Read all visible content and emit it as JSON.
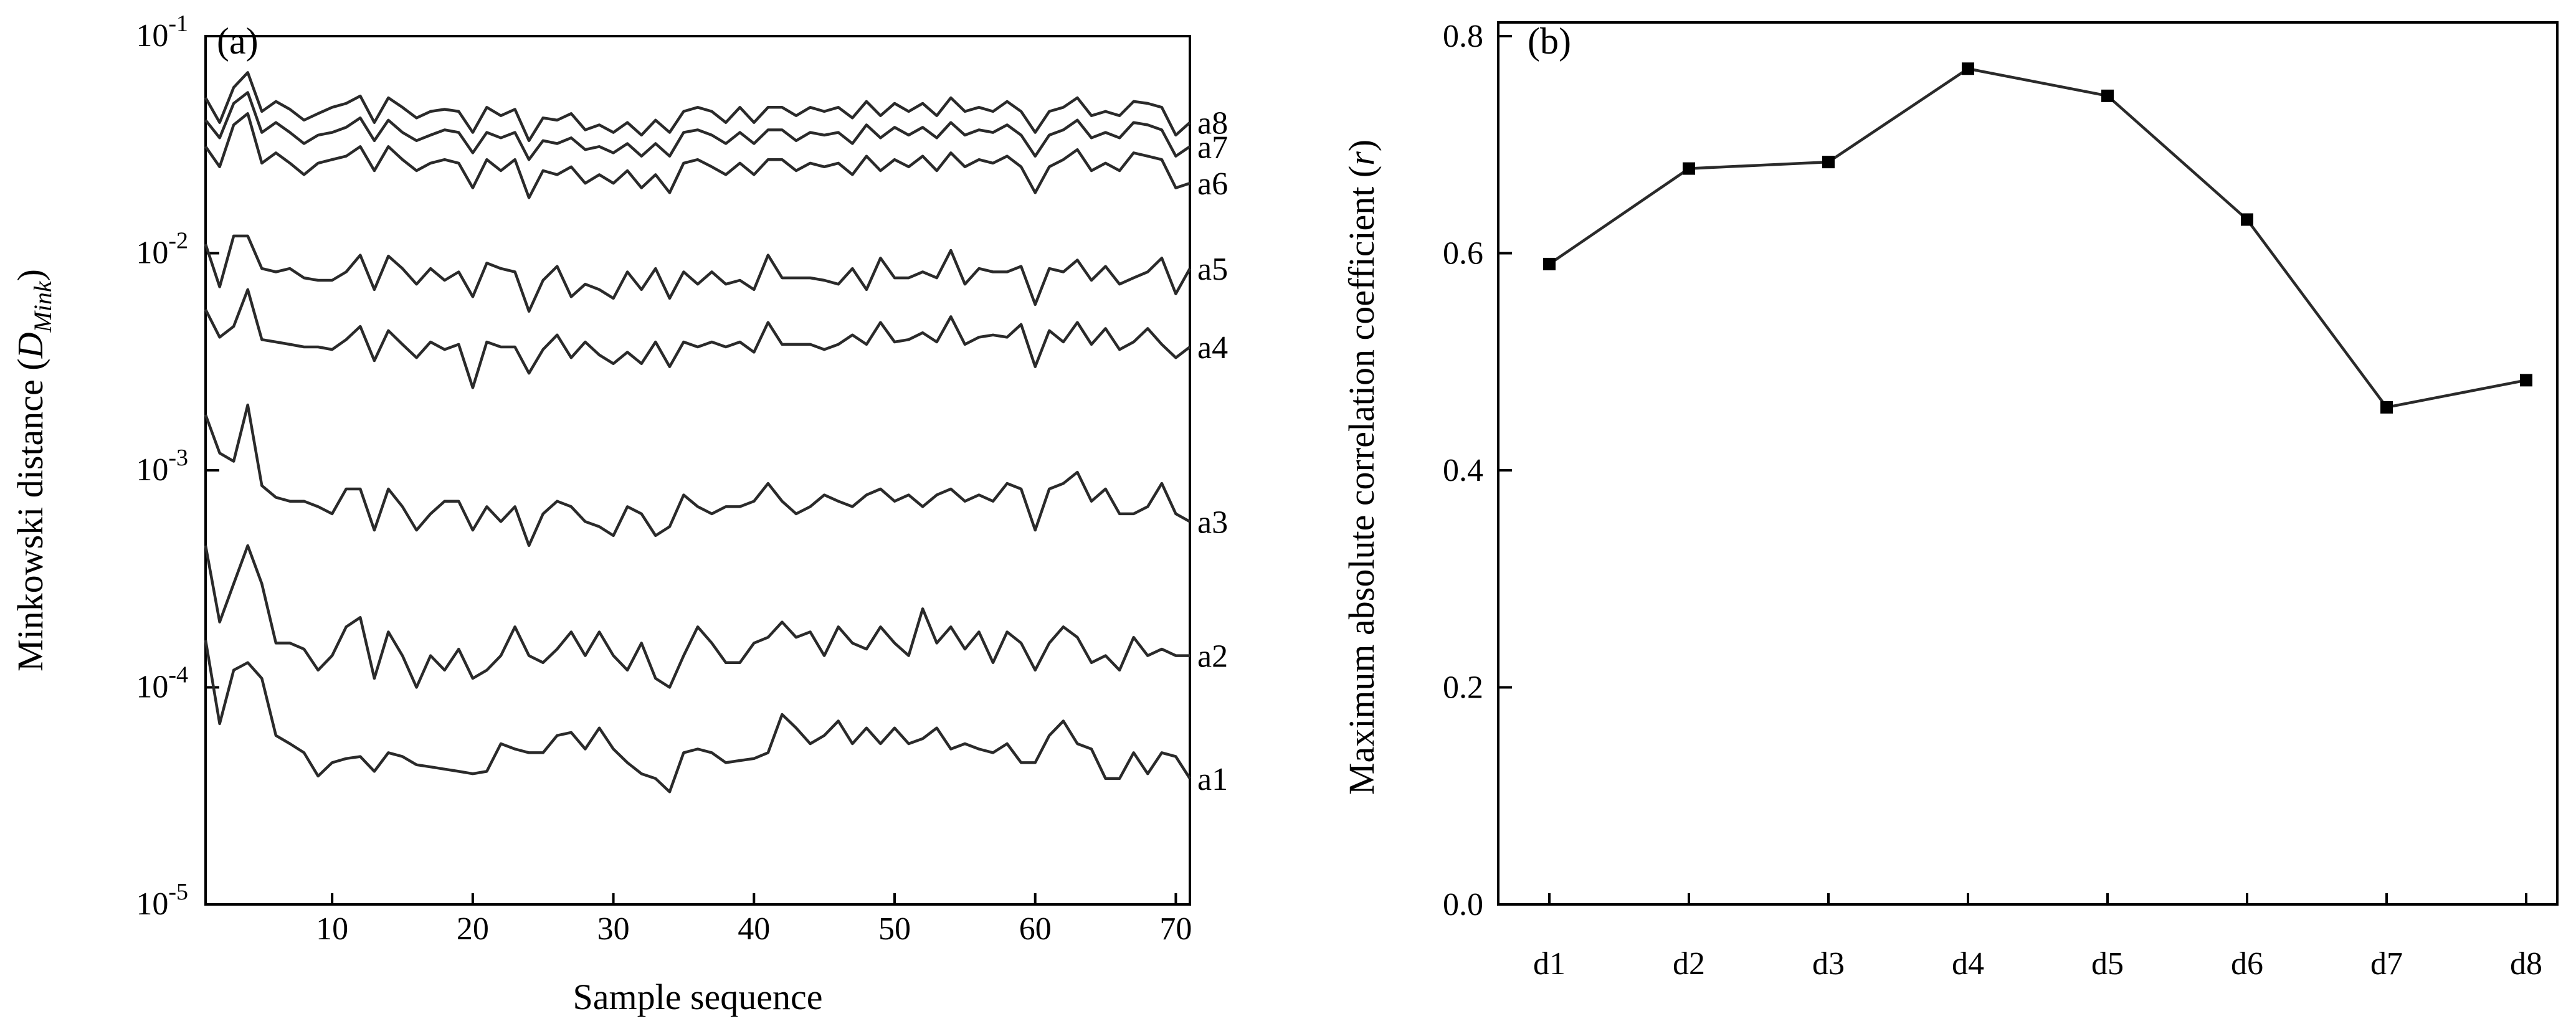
{
  "chart_data": [
    {
      "type": "line",
      "panel_label": "(a)",
      "xlabel": "Sample sequence",
      "ylabel_main": "Minkowski distance (",
      "ylabel_symbol": "D",
      "ylabel_sub": "Mink",
      "ylabel_close": ")",
      "yscale": "log",
      "xlim": [
        1,
        71
      ],
      "ylim": [
        1e-05,
        0.1
      ],
      "x_ticks": [
        "10",
        "20",
        "30",
        "40",
        "50",
        "60",
        "70"
      ],
      "y_ticks": [
        {
          "base": "10",
          "exp": "-5"
        },
        {
          "base": "10",
          "exp": "-4"
        },
        {
          "base": "10",
          "exp": "-3"
        },
        {
          "base": "10",
          "exp": "-2"
        },
        {
          "base": "10",
          "exp": "-1"
        }
      ],
      "x": [
        1,
        2,
        3,
        4,
        5,
        6,
        7,
        8,
        9,
        10,
        11,
        12,
        13,
        14,
        15,
        16,
        17,
        18,
        19,
        20,
        21,
        22,
        23,
        24,
        25,
        26,
        27,
        28,
        29,
        30,
        31,
        32,
        33,
        34,
        35,
        36,
        37,
        38,
        39,
        40,
        41,
        42,
        43,
        44,
        45,
        46,
        47,
        48,
        49,
        50,
        51,
        52,
        53,
        54,
        55,
        56,
        57,
        58,
        59,
        60,
        61,
        62,
        63,
        64,
        65,
        66,
        67,
        68,
        69,
        70,
        71
      ],
      "series": [
        {
          "name": "a8",
          "values": [
            0.052,
            0.04,
            0.058,
            0.068,
            0.045,
            0.05,
            0.046,
            0.041,
            0.044,
            0.047,
            0.049,
            0.053,
            0.04,
            0.052,
            0.047,
            0.042,
            0.045,
            0.046,
            0.045,
            0.036,
            0.047,
            0.043,
            0.046,
            0.033,
            0.042,
            0.041,
            0.044,
            0.037,
            0.039,
            0.036,
            0.04,
            0.035,
            0.041,
            0.036,
            0.045,
            0.047,
            0.045,
            0.04,
            0.047,
            0.04,
            0.047,
            0.047,
            0.043,
            0.047,
            0.045,
            0.047,
            0.042,
            0.05,
            0.043,
            0.049,
            0.045,
            0.049,
            0.043,
            0.052,
            0.045,
            0.047,
            0.045,
            0.05,
            0.045,
            0.036,
            0.045,
            0.047,
            0.052,
            0.043,
            0.045,
            0.043,
            0.05,
            0.049,
            0.047,
            0.035,
            0.04
          ]
        },
        {
          "name": "a7",
          "values": [
            0.041,
            0.034,
            0.049,
            0.055,
            0.036,
            0.04,
            0.036,
            0.032,
            0.035,
            0.036,
            0.038,
            0.042,
            0.033,
            0.041,
            0.036,
            0.033,
            0.035,
            0.037,
            0.036,
            0.029,
            0.036,
            0.034,
            0.036,
            0.027,
            0.033,
            0.032,
            0.034,
            0.03,
            0.031,
            0.029,
            0.032,
            0.028,
            0.032,
            0.028,
            0.036,
            0.037,
            0.035,
            0.032,
            0.036,
            0.032,
            0.037,
            0.037,
            0.033,
            0.036,
            0.035,
            0.036,
            0.032,
            0.039,
            0.034,
            0.038,
            0.035,
            0.038,
            0.034,
            0.04,
            0.035,
            0.037,
            0.036,
            0.039,
            0.035,
            0.028,
            0.035,
            0.037,
            0.041,
            0.034,
            0.036,
            0.034,
            0.04,
            0.039,
            0.037,
            0.028,
            0.031
          ]
        },
        {
          "name": "a6",
          "values": [
            0.031,
            0.025,
            0.039,
            0.044,
            0.026,
            0.029,
            0.026,
            0.023,
            0.026,
            0.027,
            0.028,
            0.031,
            0.024,
            0.031,
            0.027,
            0.024,
            0.026,
            0.027,
            0.026,
            0.02,
            0.027,
            0.024,
            0.027,
            0.018,
            0.024,
            0.023,
            0.025,
            0.021,
            0.023,
            0.021,
            0.024,
            0.02,
            0.023,
            0.019,
            0.026,
            0.027,
            0.025,
            0.023,
            0.026,
            0.023,
            0.027,
            0.027,
            0.024,
            0.026,
            0.025,
            0.026,
            0.023,
            0.028,
            0.024,
            0.027,
            0.025,
            0.028,
            0.024,
            0.029,
            0.025,
            0.027,
            0.026,
            0.028,
            0.025,
            0.019,
            0.025,
            0.027,
            0.03,
            0.024,
            0.026,
            0.024,
            0.029,
            0.028,
            0.027,
            0.02,
            0.021
          ]
        },
        {
          "name": "a5",
          "values": [
            0.011,
            0.007,
            0.012,
            0.012,
            0.0085,
            0.0082,
            0.0085,
            0.0077,
            0.0075,
            0.0075,
            0.0082,
            0.0098,
            0.0068,
            0.0097,
            0.0085,
            0.0072,
            0.0085,
            0.0075,
            0.0082,
            0.0063,
            0.009,
            0.0085,
            0.0082,
            0.0054,
            0.0075,
            0.0087,
            0.0063,
            0.0072,
            0.0068,
            0.0062,
            0.0082,
            0.0068,
            0.0085,
            0.0062,
            0.0082,
            0.0072,
            0.0082,
            0.0072,
            0.0075,
            0.0068,
            0.0098,
            0.0077,
            0.0077,
            0.0077,
            0.0075,
            0.0072,
            0.0085,
            0.0068,
            0.0095,
            0.0077,
            0.0077,
            0.0082,
            0.0077,
            0.0103,
            0.0072,
            0.0085,
            0.0082,
            0.0082,
            0.0087,
            0.0058,
            0.0085,
            0.0082,
            0.0093,
            0.0075,
            0.0087,
            0.0072,
            0.0077,
            0.0082,
            0.0095,
            0.0065,
            0.0085
          ]
        },
        {
          "name": "a4",
          "values": [
            0.0055,
            0.0041,
            0.0046,
            0.0068,
            0.004,
            0.0039,
            0.0038,
            0.0037,
            0.0037,
            0.0036,
            0.004,
            0.0046,
            0.0032,
            0.0044,
            0.0038,
            0.0033,
            0.0039,
            0.0036,
            0.0038,
            0.0024,
            0.0039,
            0.0037,
            0.0037,
            0.0028,
            0.0036,
            0.0042,
            0.0033,
            0.0039,
            0.0034,
            0.0031,
            0.0035,
            0.0031,
            0.0039,
            0.003,
            0.0039,
            0.0037,
            0.0039,
            0.0037,
            0.0039,
            0.0035,
            0.0048,
            0.0038,
            0.0038,
            0.0038,
            0.0036,
            0.0038,
            0.0042,
            0.0038,
            0.0048,
            0.0039,
            0.004,
            0.0043,
            0.0039,
            0.0051,
            0.0038,
            0.0041,
            0.0042,
            0.0041,
            0.0047,
            0.003,
            0.0044,
            0.0039,
            0.0048,
            0.0038,
            0.0045,
            0.0036,
            0.0039,
            0.0045,
            0.0038,
            0.0033,
            0.0037
          ]
        },
        {
          "name": "a3",
          "values": [
            0.0018,
            0.0012,
            0.0011,
            0.002,
            0.00085,
            0.00075,
            0.00072,
            0.00072,
            0.00068,
            0.00063,
            0.00082,
            0.00082,
            0.00053,
            0.00082,
            0.00068,
            0.00053,
            0.00063,
            0.00072,
            0.00072,
            0.00053,
            0.00068,
            0.00058,
            0.00068,
            0.00045,
            0.00063,
            0.00072,
            0.00068,
            0.00058,
            0.00055,
            0.0005,
            0.00068,
            0.00063,
            0.0005,
            0.00055,
            0.00077,
            0.00068,
            0.00063,
            0.00068,
            0.00068,
            0.00072,
            0.00087,
            0.00072,
            0.00063,
            0.00068,
            0.00077,
            0.00072,
            0.00068,
            0.00077,
            0.00082,
            0.00072,
            0.00077,
            0.00068,
            0.00077,
            0.00082,
            0.00072,
            0.00077,
            0.00072,
            0.00087,
            0.00082,
            0.00053,
            0.00082,
            0.00087,
            0.00098,
            0.00072,
            0.00082,
            0.00063,
            0.00063,
            0.00068,
            0.00087,
            0.00063,
            0.00058
          ]
        },
        {
          "name": "a2",
          "values": [
            0.00045,
            0.0002,
            0.0003,
            0.00045,
            0.0003,
            0.00016,
            0.00016,
            0.00015,
            0.00012,
            0.00014,
            0.00019,
            0.00021,
            0.00011,
            0.00018,
            0.00014,
            0.0001,
            0.00014,
            0.00012,
            0.00015,
            0.00011,
            0.00012,
            0.00014,
            0.00019,
            0.00014,
            0.00013,
            0.00015,
            0.00018,
            0.00014,
            0.00018,
            0.00014,
            0.00012,
            0.00016,
            0.00011,
            0.0001,
            0.00014,
            0.00019,
            0.00016,
            0.00013,
            0.00013,
            0.00016,
            0.00017,
            0.0002,
            0.00017,
            0.00018,
            0.00014,
            0.00019,
            0.00016,
            0.00015,
            0.00019,
            0.00016,
            0.00014,
            0.00023,
            0.00016,
            0.00019,
            0.00015,
            0.00018,
            0.00013,
            0.00018,
            0.00016,
            0.00012,
            0.00016,
            0.00019,
            0.00017,
            0.00013,
            0.00014,
            0.00012,
            0.00017,
            0.00014,
            0.00015,
            0.00014,
            0.00014
          ]
        },
        {
          "name": "a1",
          "values": [
            0.000165,
            6.8e-05,
            0.00012,
            0.00013,
            0.00011,
            6e-05,
            5.5e-05,
            5e-05,
            3.9e-05,
            4.5e-05,
            4.7e-05,
            4.8e-05,
            4.1e-05,
            5e-05,
            4.8e-05,
            4.4e-05,
            4.3e-05,
            4.2e-05,
            4.1e-05,
            4e-05,
            4.1e-05,
            5.5e-05,
            5.2e-05,
            5e-05,
            5e-05,
            6e-05,
            6.2e-05,
            5.2e-05,
            6.5e-05,
            5.2e-05,
            4.5e-05,
            4e-05,
            3.8e-05,
            3.3e-05,
            5e-05,
            5.2e-05,
            5e-05,
            4.5e-05,
            4.6e-05,
            4.7e-05,
            5e-05,
            7.5e-05,
            6.5e-05,
            5.5e-05,
            6e-05,
            7e-05,
            5.5e-05,
            6.5e-05,
            5.5e-05,
            6.5e-05,
            5.5e-05,
            5.8e-05,
            6.5e-05,
            5.2e-05,
            5.5e-05,
            5.2e-05,
            5e-05,
            5.5e-05,
            4.5e-05,
            4.5e-05,
            6e-05,
            7e-05,
            5.5e-05,
            5.2e-05,
            3.8e-05,
            3.8e-05,
            5e-05,
            4e-05,
            5e-05,
            4.8e-05,
            3.8e-05
          ]
        }
      ]
    },
    {
      "type": "line",
      "panel_label": "(b)",
      "ylabel_main": "Maximum absolute correlation coefficient (",
      "ylabel_symbol": "r",
      "ylabel_close": ")",
      "ylim": [
        0,
        0.8
      ],
      "y_ticks": [
        "0.0",
        "0.2",
        "0.4",
        "0.6",
        "0.8"
      ],
      "categories": [
        "d1",
        "d2",
        "d3",
        "d4",
        "d5",
        "d6",
        "d7",
        "d8"
      ],
      "values": [
        0.59,
        0.678,
        0.684,
        0.77,
        0.745,
        0.631,
        0.458,
        0.483
      ],
      "marker": "square"
    }
  ]
}
